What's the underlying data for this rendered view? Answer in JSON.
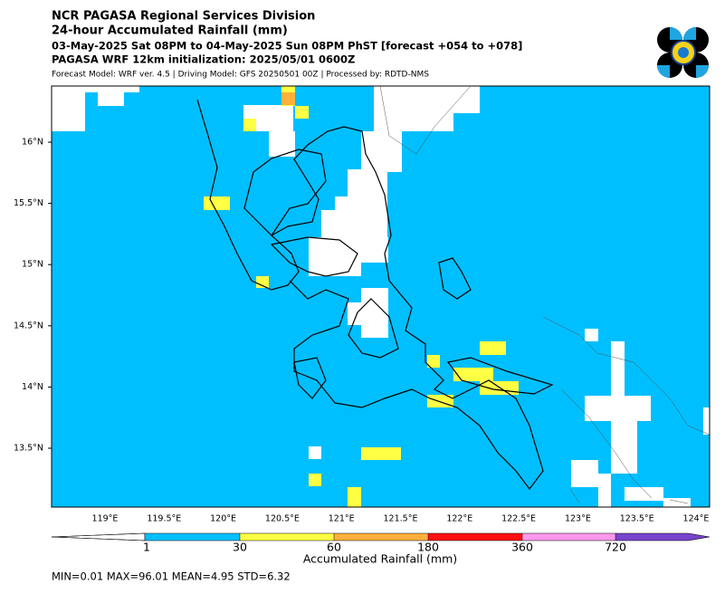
{
  "header": {
    "title": "NCR PAGASA Regional Services Division",
    "subtitle": "24-hour Accumulated Rainfall (mm)",
    "period": "03-May-2025 Sat 08PM to 04-May-2025 Sun 08PM PhST [forecast +054 to +078]",
    "initialization": "PAGASA WRF 12km initialization: 2025/05/01 0600Z",
    "model_info": "Forecast Model: WRF ver. 4.5 | Driving Model: GFS 20250501 00Z | Processed by: RDTD-NMS"
  },
  "map": {
    "lat_labels": [
      "16°N",
      "15.5°N",
      "15°N",
      "14.5°N",
      "14°N",
      "13.5°N"
    ],
    "lon_labels": [
      "119°E",
      "119.5°E",
      "120°E",
      "120.5°E",
      "121°E",
      "121.5°E",
      "122°E",
      "122.5°E",
      "123°E",
      "123.5°E",
      "124°E"
    ]
  },
  "colorbar": {
    "ticks": [
      1,
      30,
      60,
      180,
      360,
      720
    ],
    "label": "Accumulated Rainfall (mm)"
  },
  "footer": {
    "stats": "MIN=0.01   MAX=96.01   MEAN=4.95   STD=6.32"
  }
}
